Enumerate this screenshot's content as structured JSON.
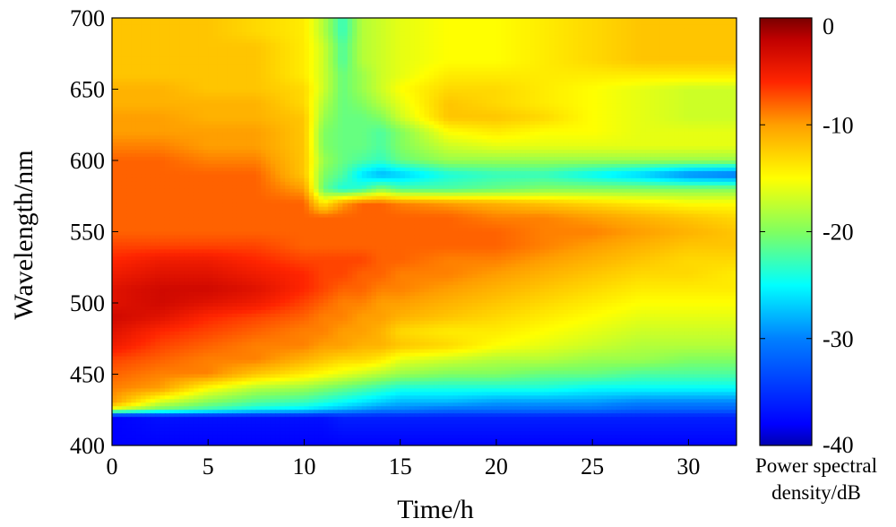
{
  "chart_data": {
    "type": "heatmap",
    "title": "",
    "xlabel": "Time/h",
    "ylabel": "Wavelength/nm",
    "xlim": [
      0,
      32.5
    ],
    "ylim": [
      400,
      700
    ],
    "x_ticks": [
      0,
      5,
      10,
      15,
      20,
      25,
      30
    ],
    "y_ticks": [
      400,
      450,
      500,
      550,
      600,
      650,
      700
    ],
    "x_tick_labels": [
      "0",
      "5",
      "10",
      "15",
      "20",
      "25",
      "30"
    ],
    "y_tick_labels": [
      "400",
      "450",
      "500",
      "550",
      "600",
      "650",
      "700"
    ],
    "colorbar": {
      "label_line1": "Power spectral",
      "label_line2": "density/dB",
      "range": [
        -40,
        0
      ],
      "ticks": [
        0,
        -10,
        -20,
        -30,
        -40
      ],
      "tick_labels": [
        "0",
        "-10",
        "-20",
        "-30",
        "-40"
      ],
      "colormap": "jet"
    },
    "grid": false,
    "x": [
      0,
      2.5,
      5,
      7.5,
      10,
      11,
      12,
      13,
      14,
      15,
      17.5,
      20,
      22.5,
      25,
      27.5,
      30,
      32.5
    ],
    "y": [
      400,
      420,
      425,
      430,
      440,
      450,
      460,
      470,
      480,
      490,
      500,
      510,
      520,
      530,
      540,
      550,
      560,
      570,
      580,
      590,
      600,
      610,
      620,
      630,
      640,
      650,
      660,
      670,
      680,
      690,
      700
    ],
    "z": [
      [
        -38,
        -38,
        -38,
        -38,
        -38,
        -38,
        -38,
        -38,
        -38,
        -38,
        -38,
        -38,
        -38,
        -38,
        -38,
        -38,
        -38
      ],
      [
        -38,
        -37,
        -37,
        -37,
        -37,
        -37,
        -36,
        -36,
        -36,
        -36,
        -36,
        -36,
        -36,
        -36,
        -36,
        -36,
        -36
      ],
      [
        -17,
        -21,
        -23,
        -25,
        -26,
        -27,
        -28,
        -29,
        -30,
        -30,
        -31,
        -31,
        -31,
        -31,
        -32,
        -32,
        -32
      ],
      [
        -10,
        -17,
        -20,
        -22,
        -23,
        -24,
        -25,
        -26,
        -27,
        -28,
        -28,
        -29,
        -29,
        -29,
        -30,
        -30,
        -30
      ],
      [
        -9,
        -10,
        -15,
        -18,
        -19,
        -20,
        -21,
        -22,
        -23,
        -24,
        -24,
        -24,
        -24,
        -25,
        -25,
        -25,
        -25
      ],
      [
        -8,
        -9,
        -9,
        -12,
        -14,
        -15,
        -16,
        -17,
        -18,
        -19,
        -20,
        -20,
        -21,
        -21,
        -22,
        -22,
        -22
      ],
      [
        -7,
        -8,
        -9,
        -9,
        -11,
        -12,
        -13,
        -13,
        -14,
        -16,
        -17,
        -18,
        -18,
        -19,
        -19,
        -20,
        -20
      ],
      [
        -5,
        -7,
        -8,
        -9,
        -9,
        -10,
        -10,
        -11,
        -11,
        -12,
        -13,
        -15,
        -16,
        -17,
        -18,
        -18,
        -18
      ],
      [
        -4,
        -6,
        -7,
        -8,
        -9,
        -9,
        -10,
        -10,
        -11,
        -13,
        -14,
        -14,
        -15,
        -16,
        -17,
        -17,
        -17
      ],
      [
        -3,
        -4,
        -6,
        -7,
        -8,
        -9,
        -9,
        -10,
        -10,
        -11,
        -12,
        -13,
        -14,
        -15,
        -16,
        -16,
        -16
      ],
      [
        -4,
        -3,
        -4,
        -5,
        -7,
        -8,
        -9,
        -9,
        -10,
        -10,
        -11,
        -12,
        -13,
        -14,
        -15,
        -15,
        -15
      ],
      [
        -4,
        -3,
        -3,
        -4,
        -6,
        -7,
        -8,
        -8,
        -9,
        -9,
        -10,
        -11,
        -12,
        -13,
        -14,
        -14,
        -14
      ],
      [
        -5,
        -4,
        -4,
        -5,
        -6,
        -7,
        -7,
        -8,
        -8,
        -9,
        -9,
        -10,
        -11,
        -12,
        -13,
        -13,
        -14
      ],
      [
        -6,
        -5,
        -5,
        -6,
        -7,
        -7,
        -7,
        -7,
        -8,
        -8,
        -9,
        -9,
        -10,
        -11,
        -12,
        -13,
        -13
      ],
      [
        -7,
        -7,
        -7,
        -7,
        -8,
        -8,
        -8,
        -8,
        -8,
        -8,
        -8,
        -8,
        -9,
        -10,
        -11,
        -12,
        -12
      ],
      [
        -8,
        -8,
        -8,
        -8,
        -8,
        -8,
        -8,
        -8,
        -8,
        -8,
        -8,
        -8,
        -9,
        -9,
        -10,
        -11,
        -12
      ],
      [
        -8,
        -8,
        -8,
        -8,
        -8,
        -8,
        -8,
        -8,
        -8,
        -8,
        -8,
        -9,
        -9,
        -10,
        -11,
        -12,
        -13
      ],
      [
        -8,
        -8,
        -8,
        -8,
        -8,
        -14,
        -10,
        -8,
        -8,
        -9,
        -10,
        -11,
        -12,
        -13,
        -14,
        -15,
        -15
      ],
      [
        -8,
        -8,
        -8,
        -8,
        -10,
        -21,
        -24,
        -23,
        -20,
        -22,
        -22,
        -21,
        -20,
        -20,
        -20,
        -20,
        -20
      ],
      [
        -8,
        -8,
        -8,
        -8,
        -12,
        -20,
        -22,
        -26,
        -28,
        -27,
        -24,
        -23,
        -23,
        -25,
        -27,
        -30,
        -31
      ],
      [
        -8,
        -8,
        -9,
        -9,
        -12,
        -19,
        -21,
        -22,
        -23,
        -21,
        -19,
        -19,
        -19,
        -19,
        -19,
        -19,
        -19
      ],
      [
        -9,
        -9,
        -10,
        -10,
        -12,
        -20,
        -21,
        -21,
        -22,
        -20,
        -17,
        -16,
        -16,
        -16,
        -16,
        -16,
        -16
      ],
      [
        -10,
        -10,
        -10,
        -10,
        -12,
        -20,
        -21,
        -21,
        -22,
        -20,
        -15,
        -14,
        -15,
        -15,
        -16,
        -16,
        -16
      ],
      [
        -10,
        -10,
        -11,
        -11,
        -12,
        -19,
        -21,
        -21,
        -20,
        -17,
        -12,
        -12,
        -13,
        -15,
        -16,
        -17,
        -17
      ],
      [
        -11,
        -11,
        -11,
        -11,
        -13,
        -18,
        -21,
        -20,
        -18,
        -16,
        -12,
        -13,
        -14,
        -15,
        -16,
        -17,
        -17
      ],
      [
        -11,
        -11,
        -12,
        -12,
        -13,
        -17,
        -21,
        -19,
        -17,
        -15,
        -13,
        -13,
        -14,
        -15,
        -16,
        -17,
        -17
      ],
      [
        -12,
        -12,
        -12,
        -12,
        -14,
        -17,
        -21,
        -19,
        -17,
        -16,
        -14,
        -14,
        -14,
        -14,
        -14,
        -14,
        -14
      ],
      [
        -12,
        -12,
        -12,
        -12,
        -14,
        -17,
        -22,
        -18,
        -17,
        -16,
        -15,
        -15,
        -14,
        -13,
        -12,
        -12,
        -12
      ],
      [
        -12,
        -12,
        -12,
        -12,
        -14,
        -17,
        -22,
        -18,
        -17,
        -16,
        -15,
        -15,
        -14,
        -13,
        -12,
        -12,
        -12
      ],
      [
        -12,
        -12,
        -12,
        -13,
        -14,
        -18,
        -23,
        -18,
        -17,
        -16,
        -15,
        -15,
        -14,
        -13,
        -12,
        -12,
        -12
      ],
      [
        -12,
        -12,
        -12,
        -13,
        -14,
        -18,
        -23,
        -18,
        -17,
        -16,
        -15,
        -15,
        -14,
        -13,
        -12,
        -12,
        -12
      ]
    ]
  }
}
